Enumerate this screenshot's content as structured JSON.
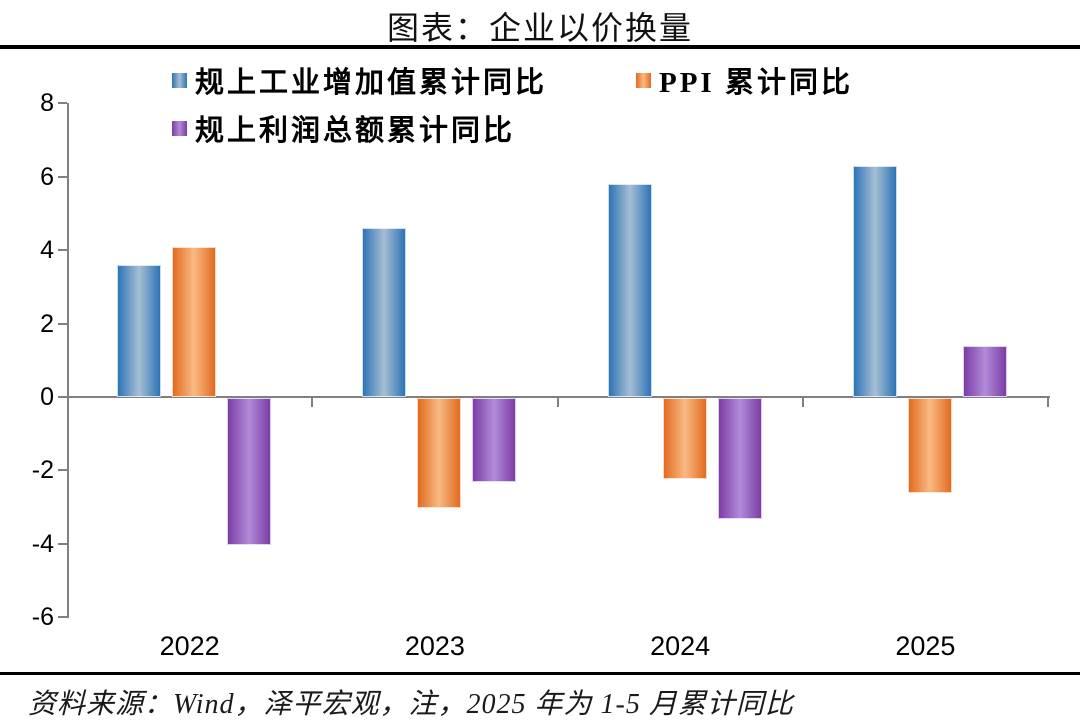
{
  "title": "图表：企业以价换量",
  "source_note": "资料来源：Wind，泽平宏观，注，2025 年为 1-5 月累计同比",
  "legend": [
    {
      "label": "规上工业增加值累计同比",
      "color_dark": "#2E74B6",
      "color_light": "#A6BED3"
    },
    {
      "label": "PPI 累计同比",
      "color_dark": "#E26B1F",
      "color_light": "#F9BA85"
    },
    {
      "label": "规上利润总额累计同比",
      "color_dark": "#7B3DA6",
      "color_light": "#B28BD9"
    }
  ],
  "axis_color": "#808080",
  "chart_data": {
    "type": "bar",
    "title": "图表：企业以价换量",
    "categories": [
      "2022",
      "2023",
      "2024",
      "2025"
    ],
    "series": [
      {
        "name": "规上工业增加值累计同比",
        "values": [
          3.6,
          4.6,
          5.8,
          6.3
        ]
      },
      {
        "name": "PPI 累计同比",
        "values": [
          4.1,
          -3.0,
          -2.2,
          -2.6
        ]
      },
      {
        "name": "规上利润总额累计同比",
        "values": [
          -4.0,
          -2.3,
          -3.3,
          1.4
        ]
      }
    ],
    "xlabel": "",
    "ylabel": "",
    "ylim": [
      -6,
      8
    ],
    "yticks": [
      8,
      6,
      4,
      2,
      0,
      -2,
      -4,
      -6
    ],
    "grid": false,
    "legend_position": "top"
  }
}
